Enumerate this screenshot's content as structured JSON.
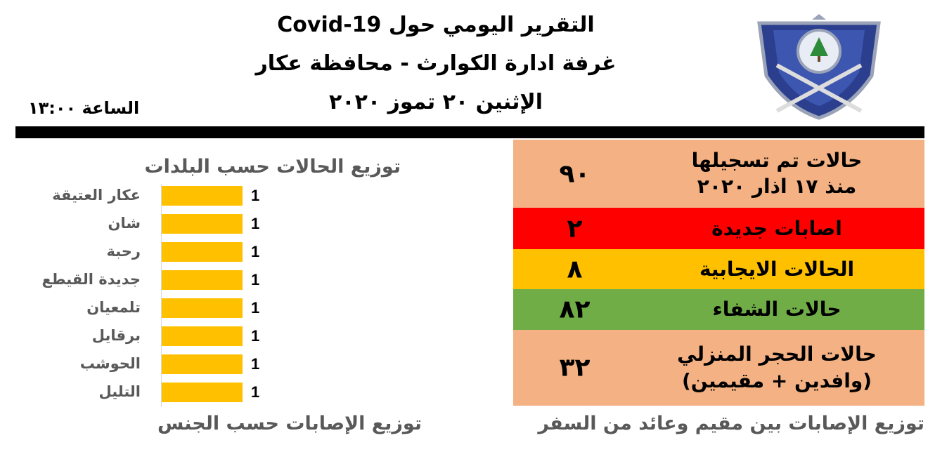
{
  "header": {
    "title_line1": "التقرير اليومي حول Covid-19",
    "title_line2": "غرفة ادارة الكوارث - محافظة عكار",
    "date": "الإثنين ٢٠ تموز ٢٠٢٠",
    "time": "الساعة ١٣:٠٠",
    "logo_icon": "shield-cedar-swords-icon"
  },
  "stats": [
    {
      "label_line1": "حالات تم تسجيلها",
      "label_line2": "منذ ١٧ اذار ٢٠٢٠",
      "value": "٩٠",
      "color": "#f4b183"
    },
    {
      "label_line1": "اصابات جديدة",
      "value": "٢",
      "color": "#ff0000"
    },
    {
      "label_line1": "الحالات الايجابية",
      "value": "٨",
      "color": "#ffc000"
    },
    {
      "label_line1": "حالات الشفاء",
      "value": "٨٢",
      "color": "#70ad47"
    },
    {
      "label_line1": "حالات الحجر المنزلي",
      "label_line2": "(وافدين + مقيمين)",
      "value": "٣٢",
      "color": "#f4b183"
    }
  ],
  "captions": {
    "residency": "توزيع الإصابات بين مقيم وعائد من السفر",
    "gender": "توزيع الإصابات حسب الجنس"
  },
  "chart_data": {
    "type": "bar",
    "orientation": "horizontal",
    "title": "توزيع الحالات حسب البلدات",
    "categories": [
      "عكار العتيقة",
      "شان",
      "رحبة",
      "جديدة القيطع",
      "تلمعيان",
      "برقايل",
      "الحوشب",
      "التليل"
    ],
    "values": [
      1,
      1,
      1,
      1,
      1,
      1,
      1,
      1
    ],
    "data_labels": [
      "1",
      "1",
      "1",
      "1",
      "1",
      "1",
      "1",
      "1"
    ],
    "bar_color": "#ffc000",
    "grid": false
  }
}
